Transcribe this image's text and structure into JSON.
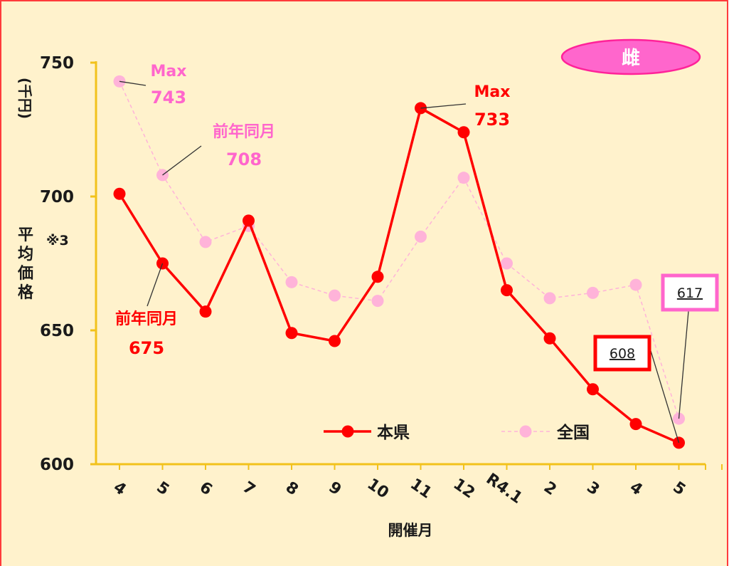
{
  "colors": {
    "background": "#fff2cc",
    "frame": "#ff3b3b",
    "axis": "#f2c21b",
    "prefecture": "#ff0000",
    "national": "#ffb3d9",
    "pink_text": "#ff66cc",
    "badge_fill": "#ff66cc",
    "badge_stroke": "#ff2299",
    "dark": "#1a1a1a",
    "leader": "#333333"
  },
  "badge": {
    "label": "雌"
  },
  "chart_data": {
    "type": "line",
    "categories": [
      "4",
      "5",
      "6",
      "7",
      "8",
      "9",
      "10",
      "11",
      "12",
      "R4.1",
      "2",
      "3",
      "4",
      "5"
    ],
    "ylim": [
      600,
      750
    ],
    "yticks": [
      "600",
      "650",
      "700",
      "750"
    ],
    "ylabel": "平均価格",
    "yunit": "(千円)",
    "ynote": "※3",
    "xlabel": "開催月",
    "series": [
      {
        "name": "本県",
        "values": [
          701,
          675,
          657,
          691,
          649,
          646,
          670,
          733,
          724,
          665,
          647,
          628,
          615,
          608
        ]
      },
      {
        "name": "全国",
        "values": [
          743,
          708,
          683,
          689,
          668,
          663,
          661,
          685,
          707,
          675,
          662,
          664,
          667,
          617
        ]
      }
    ],
    "annotations": [
      {
        "series": 1,
        "index": 0,
        "line1": "Max",
        "line2": "743"
      },
      {
        "series": 1,
        "index": 1,
        "line1": "前年同月",
        "line2": "708"
      },
      {
        "series": 0,
        "index": 1,
        "line1": "前年同月",
        "line2": "675"
      },
      {
        "series": 0,
        "index": 7,
        "line1": "Max",
        "line2": "733"
      }
    ],
    "boxed_labels": [
      {
        "series": 0,
        "index": 13,
        "text": "608"
      },
      {
        "series": 1,
        "index": 13,
        "text": "617"
      }
    ]
  }
}
